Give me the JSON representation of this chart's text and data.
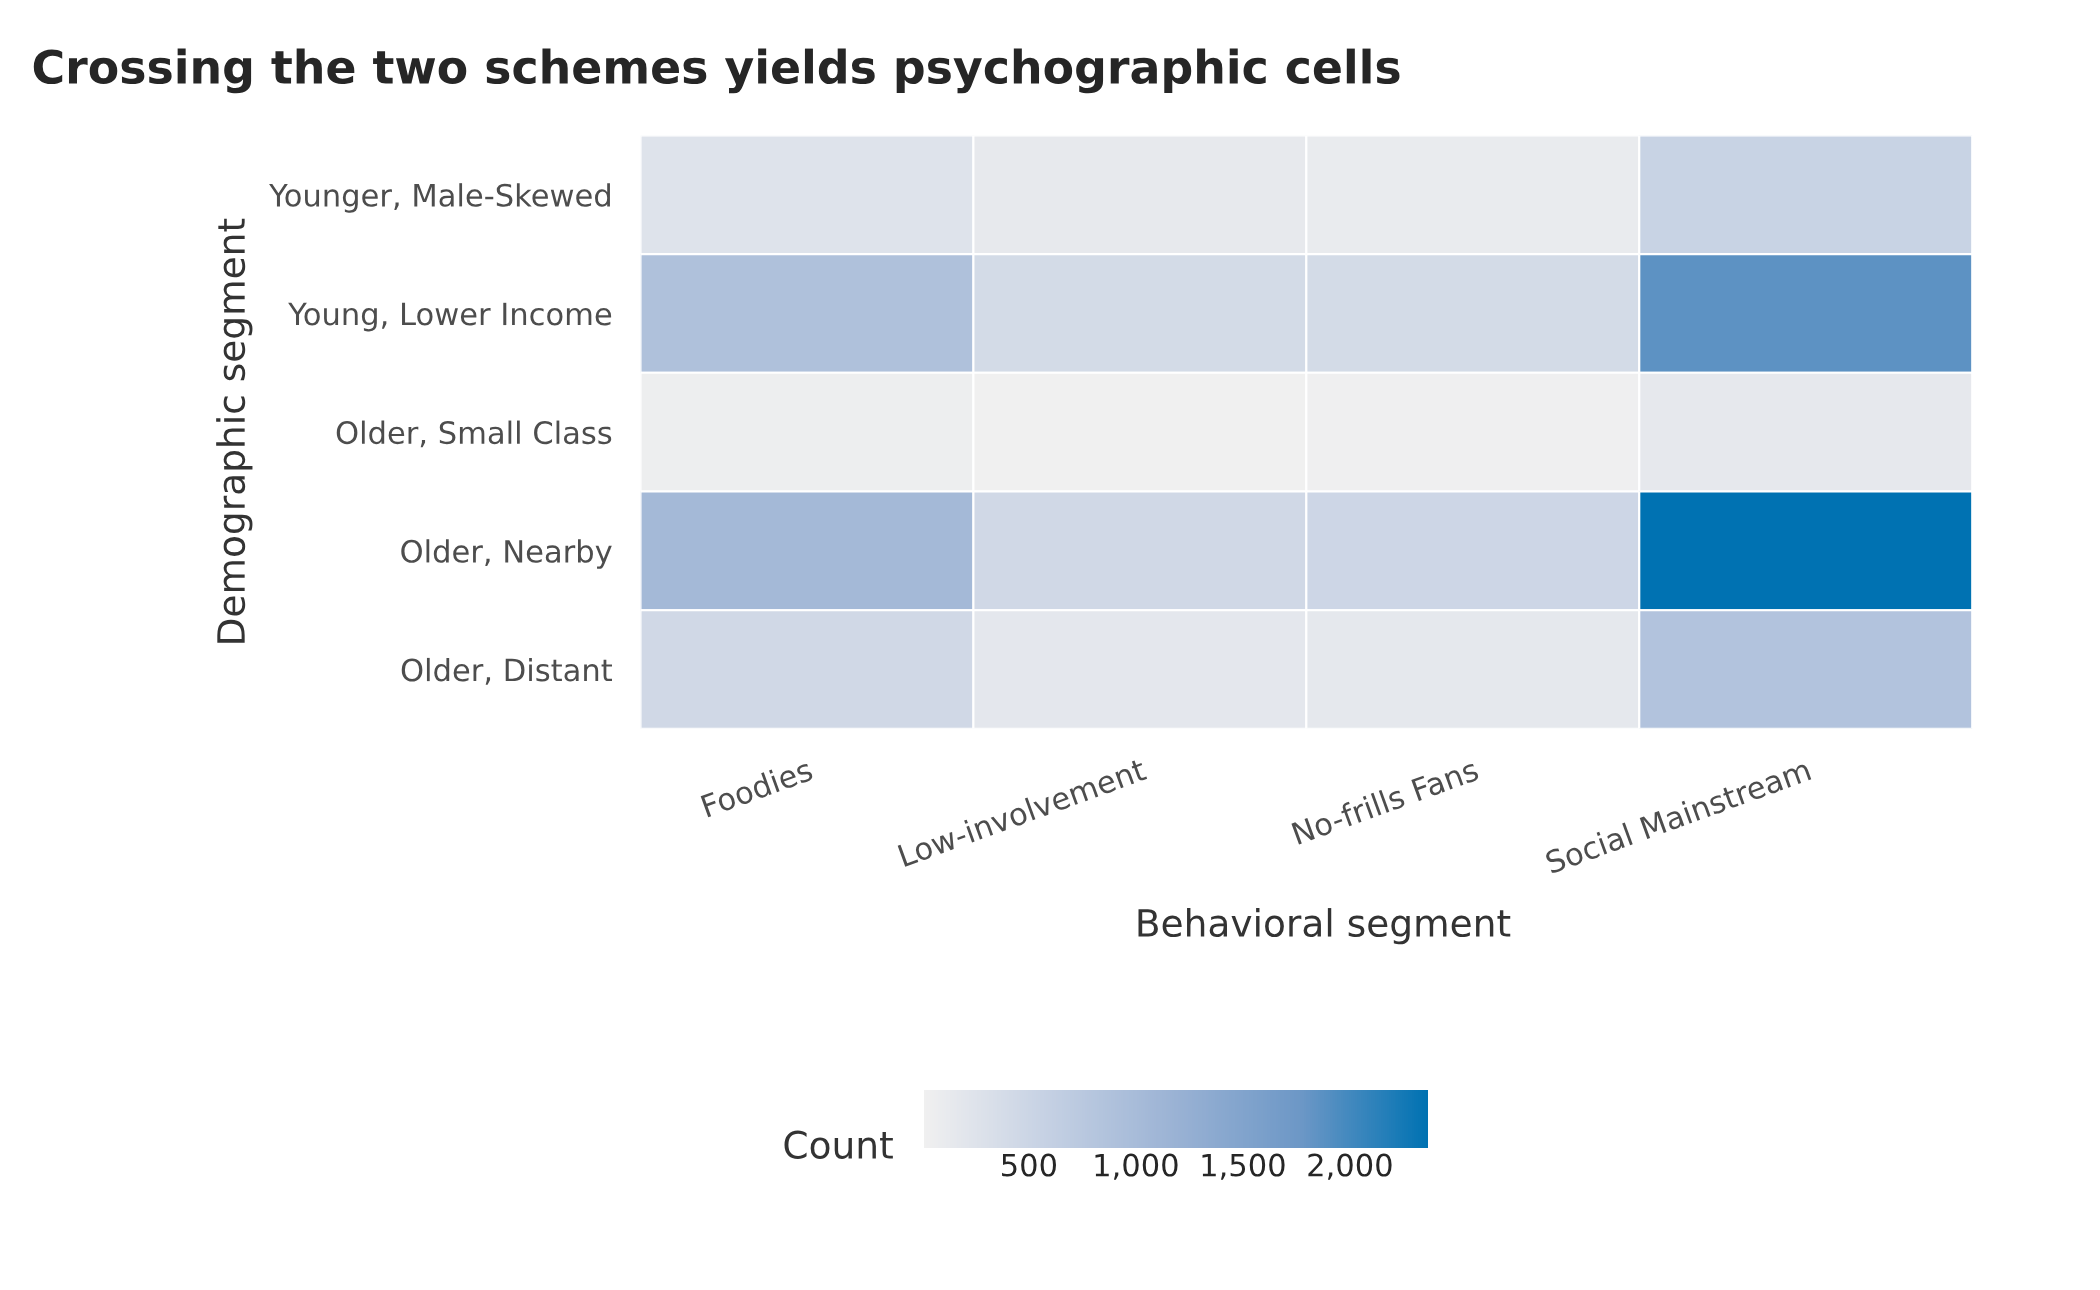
{
  "chart_data": {
    "type": "heatmap",
    "title": "Crossing the two schemes yields psychographic cells",
    "xlabel": "Behavioral segment",
    "ylabel": "Demographic segment",
    "clabel": "Count",
    "categories": [
      "Foodies",
      "Low-involvement",
      "No-frills Fans",
      "Social Mainstream"
    ],
    "y_categories": [
      "Younger, Male-Skewed",
      "Young, Lower Income",
      "Older, Small Class",
      "Older, Nearby",
      "Older, Distant"
    ],
    "cells": [
      [
        250,
        130,
        110,
        550
      ],
      [
        900,
        400,
        400,
        1850
      ],
      [
        50,
        15,
        20,
        150
      ],
      [
        1050,
        450,
        480,
        2365
      ],
      [
        450,
        170,
        160,
        850
      ]
    ],
    "clim": [
      10,
      2365
    ],
    "cticks": [
      500,
      {
        "value": 1000,
        "label": "1,000"
      },
      {
        "value": 1500,
        "label": "1,500"
      },
      {
        "value": 2000,
        "label": "2,000"
      }
    ],
    "colors": [
      "#f0f0f0",
      "#c4d0e3",
      "#9ab2d4",
      "#6c97c6",
      "#0072b2"
    ],
    "grid": false
  }
}
